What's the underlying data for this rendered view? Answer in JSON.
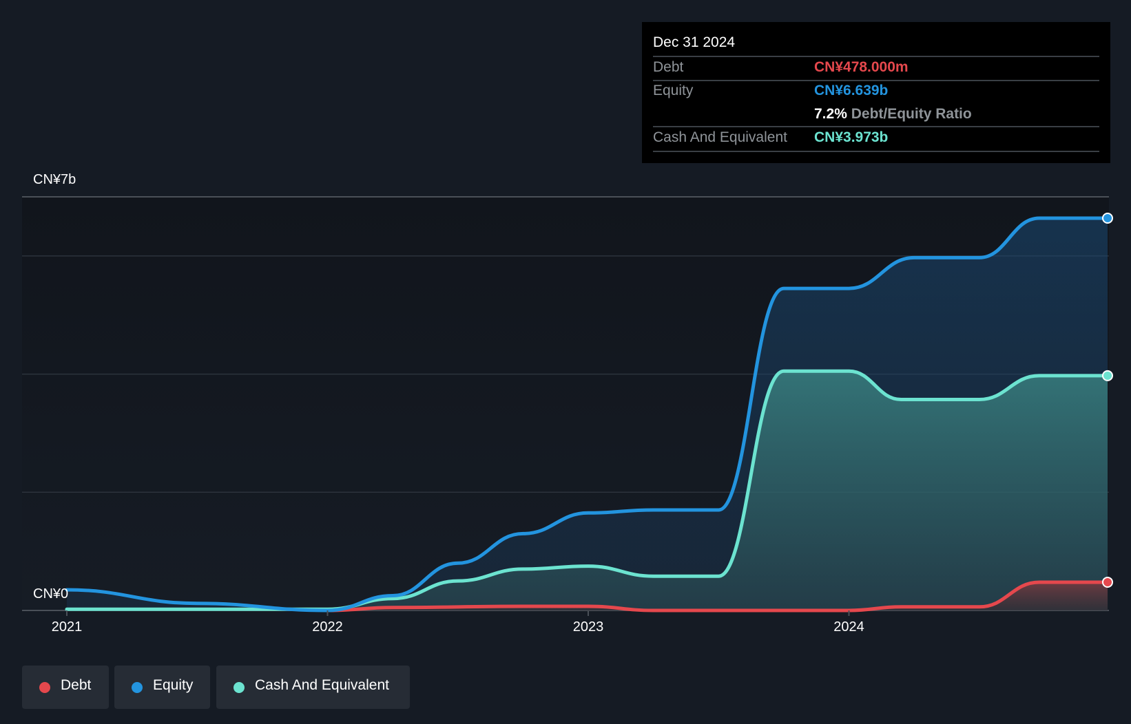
{
  "chart_data": {
    "type": "area",
    "y_axis": {
      "max_label": "CN¥7b",
      "min_label": "CN¥0",
      "ylim": [
        0,
        7
      ]
    },
    "x_ticks": [
      "2021",
      "2022",
      "2023",
      "2024"
    ],
    "xlim": [
      2021.0,
      2025.0
    ],
    "grid": true,
    "series": [
      {
        "name": "Debt",
        "color": "#e5484d",
        "points": [
          [
            2022.0,
            0.0
          ],
          [
            2022.25,
            0.05
          ],
          [
            2022.75,
            0.07
          ],
          [
            2023.0,
            0.07
          ],
          [
            2023.25,
            0.0
          ],
          [
            2024.0,
            0.0
          ],
          [
            2024.2,
            0.06
          ],
          [
            2024.5,
            0.06
          ],
          [
            2024.73,
            0.478
          ],
          [
            2025.0,
            0.478
          ]
        ]
      },
      {
        "name": "Equity",
        "color": "#2394df",
        "points": [
          [
            2021.0,
            0.35
          ],
          [
            2021.5,
            0.12
          ],
          [
            2022.0,
            0.0
          ],
          [
            2022.25,
            0.25
          ],
          [
            2022.5,
            0.8
          ],
          [
            2022.75,
            1.3
          ],
          [
            2023.0,
            1.65
          ],
          [
            2023.25,
            1.7
          ],
          [
            2023.5,
            1.7
          ],
          [
            2023.75,
            5.45
          ],
          [
            2024.0,
            5.45
          ],
          [
            2024.25,
            5.97
          ],
          [
            2024.5,
            5.97
          ],
          [
            2024.73,
            6.639
          ],
          [
            2025.0,
            6.639
          ]
        ]
      },
      {
        "name": "Cash And Equivalent",
        "color": "#6ce3d0",
        "points": [
          [
            2021.0,
            0.02
          ],
          [
            2022.0,
            0.02
          ],
          [
            2022.25,
            0.2
          ],
          [
            2022.5,
            0.5
          ],
          [
            2022.75,
            0.7
          ],
          [
            2023.0,
            0.75
          ],
          [
            2023.25,
            0.58
          ],
          [
            2023.5,
            0.58
          ],
          [
            2023.75,
            4.05
          ],
          [
            2024.0,
            4.05
          ],
          [
            2024.2,
            3.57
          ],
          [
            2024.5,
            3.57
          ],
          [
            2024.73,
            3.973
          ],
          [
            2025.0,
            3.973
          ]
        ]
      }
    ]
  },
  "tooltip": {
    "date": "Dec 31 2024",
    "debt_label": "Debt",
    "debt_value": "CN¥478.000m",
    "equity_label": "Equity",
    "equity_value": "CN¥6.639b",
    "ratio_value": "7.2%",
    "ratio_label": "Debt/Equity Ratio",
    "cash_label": "Cash And Equivalent",
    "cash_value": "CN¥3.973b"
  },
  "legend": [
    {
      "label": "Debt",
      "color": "#e5484d"
    },
    {
      "label": "Equity",
      "color": "#2394df"
    },
    {
      "label": "Cash And Equivalent",
      "color": "#6ce3d0"
    }
  ]
}
